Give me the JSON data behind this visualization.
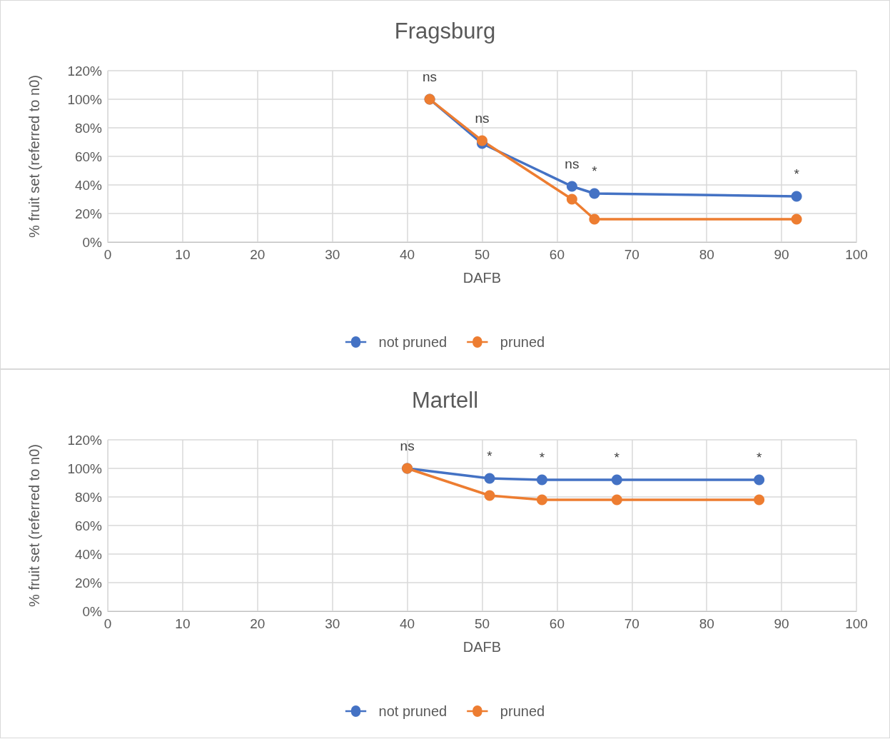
{
  "chart_data": [
    {
      "type": "line",
      "title": "Fragsburg",
      "xlabel": "DAFB",
      "ylabel": "% fruit set (referred to n0)",
      "x": [
        43,
        50,
        62,
        65,
        92
      ],
      "series": [
        {
          "name": "not pruned",
          "color": "#4472c4",
          "values": [
            100,
            69,
            39,
            34,
            32
          ]
        },
        {
          "name": "pruned",
          "color": "#ed7d31",
          "values": [
            100,
            71,
            30,
            16,
            16
          ]
        }
      ],
      "xlim": [
        0,
        100
      ],
      "xticks": [
        0,
        10,
        20,
        30,
        40,
        50,
        60,
        70,
        80,
        90,
        100
      ],
      "ylim": [
        0,
        120
      ],
      "yticks": [
        {
          "value": 0,
          "label": "0%"
        },
        {
          "value": 20,
          "label": "20%"
        },
        {
          "value": 40,
          "label": "40%"
        },
        {
          "value": 60,
          "label": "60%"
        },
        {
          "value": 80,
          "label": "80%"
        },
        {
          "value": 100,
          "label": "100%"
        },
        {
          "value": 120,
          "label": "120%"
        }
      ],
      "annotations": [
        "ns",
        "ns",
        "ns",
        "*",
        "*"
      ],
      "grid": true,
      "legend": "bottom",
      "marker": "circle",
      "line_style": "solid"
    },
    {
      "type": "line",
      "title": "Martell",
      "xlabel": "DAFB",
      "ylabel": "% fruit set (referred to n0)",
      "x": [
        40,
        51,
        58,
        68,
        87
      ],
      "series": [
        {
          "name": "not pruned",
          "color": "#4472c4",
          "values": [
            100,
            93,
            92,
            92,
            92
          ]
        },
        {
          "name": "pruned",
          "color": "#ed7d31",
          "values": [
            100,
            81,
            78,
            78,
            78
          ]
        }
      ],
      "xlim": [
        0,
        100
      ],
      "xticks": [
        0,
        10,
        20,
        30,
        40,
        50,
        60,
        70,
        80,
        90,
        100
      ],
      "ylim": [
        0,
        120
      ],
      "yticks": [
        {
          "value": 0,
          "label": "0%"
        },
        {
          "value": 20,
          "label": "20%"
        },
        {
          "value": 40,
          "label": "40%"
        },
        {
          "value": 60,
          "label": "60%"
        },
        {
          "value": 80,
          "label": "80%"
        },
        {
          "value": 100,
          "label": "100%"
        },
        {
          "value": 120,
          "label": "120%"
        }
      ],
      "annotations": [
        "ns",
        "*",
        "*",
        "*",
        "*"
      ],
      "grid": true,
      "legend": "bottom",
      "marker": "circle",
      "line_style": "solid"
    }
  ]
}
